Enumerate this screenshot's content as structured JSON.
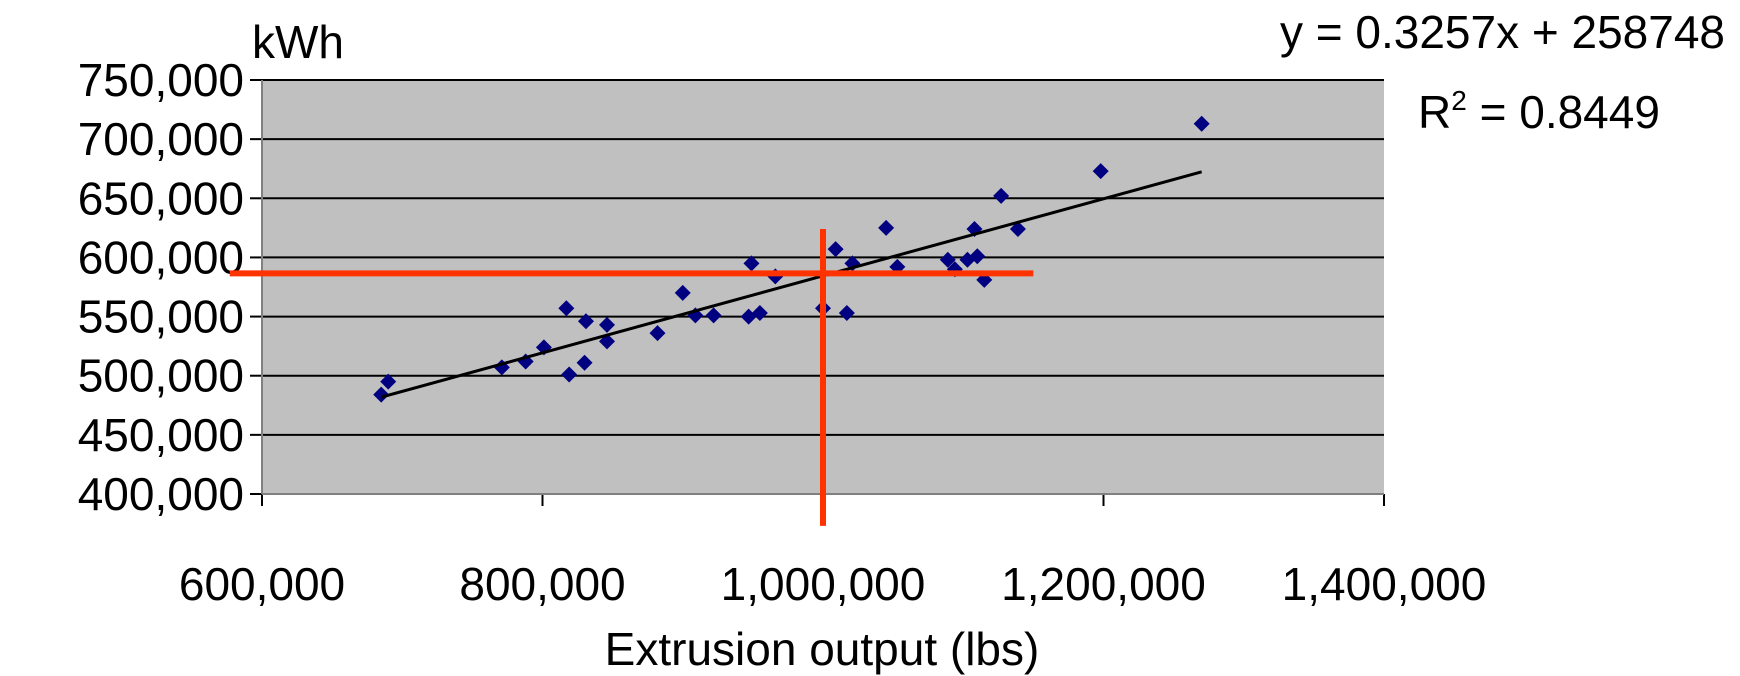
{
  "chart_data": {
    "type": "scatter",
    "ylabel": "kWh",
    "xlabel": "Extrusion output (lbs)",
    "equation": "y = 0.3257x + 258748",
    "r2_label": "R",
    "r2_sup": "2",
    "r2_value": " = 0.8449",
    "xlim": [
      600000,
      1400000
    ],
    "ylim": [
      400000,
      750000
    ],
    "x_ticks": [
      600000,
      800000,
      1000000,
      1200000,
      1400000
    ],
    "x_tick_labels": [
      "600,000",
      "800,000",
      "1,000,000",
      "1,200,000",
      "1,400,000"
    ],
    "y_ticks": [
      400000,
      450000,
      500000,
      550000,
      600000,
      650000,
      700000,
      750000
    ],
    "y_tick_labels": [
      "400,000",
      "450,000",
      "500,000",
      "550,000",
      "600,000",
      "650,000",
      "700,000",
      "750,000"
    ],
    "grid": true,
    "plot_background": "#c0c0c0",
    "point_color": "#000080",
    "trend_color": "#000000",
    "marker_line_color": "#ff3300",
    "trendline": {
      "slope": 0.3257,
      "intercept": 258748,
      "x_range": [
        685000,
        1270000
      ]
    },
    "reference_lines": {
      "x": 1000000,
      "y": 586500,
      "x_extent": [
        577000,
        1150000
      ],
      "y_extent": [
        373000,
        624000
      ]
    },
    "points": [
      {
        "x": 685000,
        "y": 484000
      },
      {
        "x": 690000,
        "y": 495000
      },
      {
        "x": 771000,
        "y": 507000
      },
      {
        "x": 788000,
        "y": 512000
      },
      {
        "x": 801000,
        "y": 524000
      },
      {
        "x": 817000,
        "y": 557000
      },
      {
        "x": 819000,
        "y": 501000
      },
      {
        "x": 830000,
        "y": 511000
      },
      {
        "x": 831000,
        "y": 546000
      },
      {
        "x": 846000,
        "y": 543000
      },
      {
        "x": 846000,
        "y": 529000
      },
      {
        "x": 882000,
        "y": 536000
      },
      {
        "x": 900000,
        "y": 570000
      },
      {
        "x": 909000,
        "y": 551000
      },
      {
        "x": 922000,
        "y": 551000
      },
      {
        "x": 947000,
        "y": 550000
      },
      {
        "x": 949000,
        "y": 595000
      },
      {
        "x": 955000,
        "y": 553000
      },
      {
        "x": 966000,
        "y": 584000
      },
      {
        "x": 1000000,
        "y": 557000
      },
      {
        "x": 1009000,
        "y": 607000
      },
      {
        "x": 1017000,
        "y": 553000
      },
      {
        "x": 1021000,
        "y": 595000
      },
      {
        "x": 1045000,
        "y": 625000
      },
      {
        "x": 1053000,
        "y": 592000
      },
      {
        "x": 1089000,
        "y": 598000
      },
      {
        "x": 1094000,
        "y": 590000
      },
      {
        "x": 1103000,
        "y": 598000
      },
      {
        "x": 1108000,
        "y": 624000
      },
      {
        "x": 1110000,
        "y": 601000
      },
      {
        "x": 1115000,
        "y": 581000
      },
      {
        "x": 1127000,
        "y": 652000
      },
      {
        "x": 1139000,
        "y": 624000
      },
      {
        "x": 1198000,
        "y": 673000
      },
      {
        "x": 1270000,
        "y": 713000
      }
    ]
  }
}
